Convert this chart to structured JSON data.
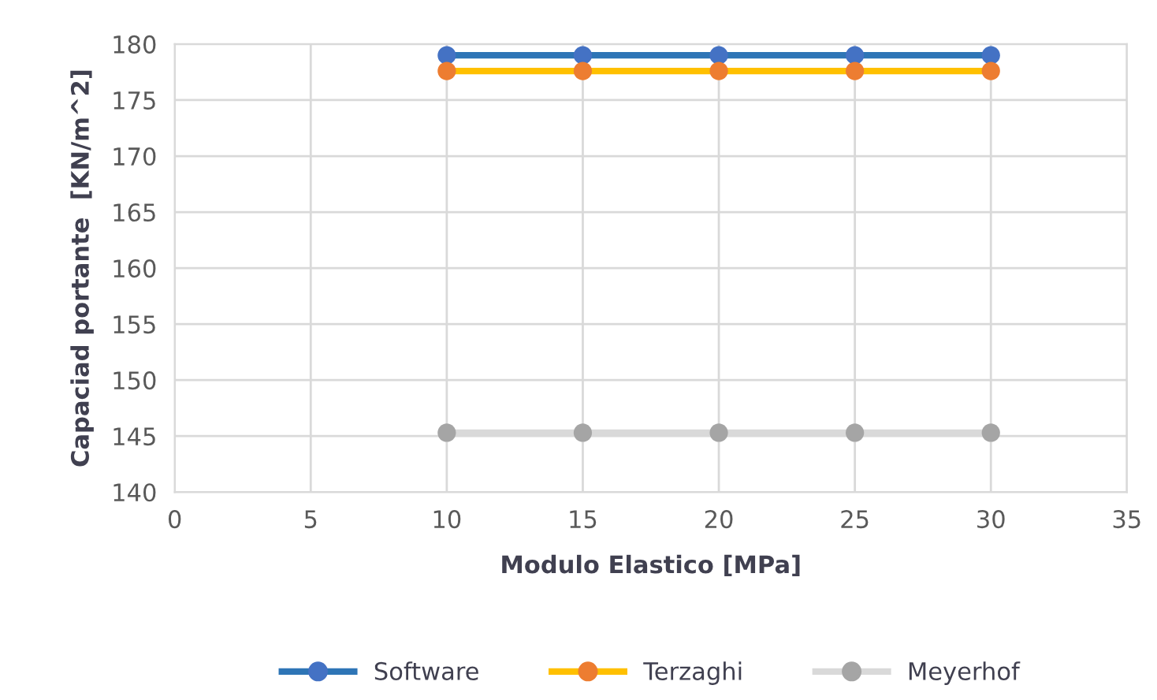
{
  "chart_data": {
    "type": "line",
    "xlabel": "Modulo Elastico [MPa]",
    "ylabel": "Capaciad portante  [KN/m^2]",
    "x": [
      10,
      15,
      20,
      25,
      30
    ],
    "series": [
      {
        "name": "Software",
        "color": "#2e75b6",
        "colors": [
          "#4472c4",
          "#4472c4",
          "#4472c4",
          "#4472c4",
          "#4472c4"
        ],
        "values": [
          179.0,
          179.0,
          179.0,
          179.0,
          179.0
        ]
      },
      {
        "name": "Terzaghi",
        "color": "#ffc000",
        "colors": [
          "#ed7d31",
          "#ed7d31",
          "#ed7d31",
          "#ed7d31",
          "#ed7d31"
        ],
        "values": [
          177.6,
          177.6,
          177.6,
          177.6,
          177.6
        ]
      },
      {
        "name": "Meyerhof",
        "color": "#d9d9d9",
        "colors": [
          "#a5a5a5",
          "#a5a5a5",
          "#a5a5a5",
          "#a5a5a5",
          "#a5a5a5"
        ],
        "values": [
          145.3,
          145.3,
          145.3,
          145.3,
          145.3
        ]
      }
    ],
    "xlim": [
      0,
      35
    ],
    "xticks": [
      0,
      5,
      10,
      15,
      20,
      25,
      30,
      35
    ],
    "ylim": [
      140,
      180
    ],
    "yticks": [
      140,
      145,
      150,
      155,
      160,
      165,
      170,
      175,
      180
    ],
    "grid": true,
    "legend": "bottom",
    "marker": "circle",
    "line_style": "solid"
  }
}
